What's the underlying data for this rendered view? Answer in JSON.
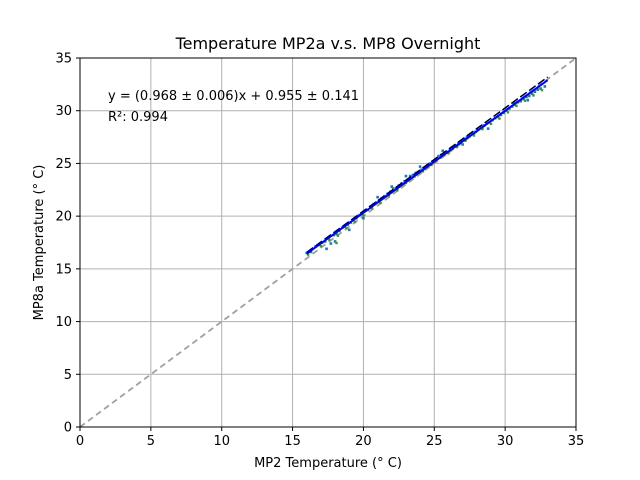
{
  "chart_data": {
    "type": "scatter",
    "title": "Temperature MP2a v.s. MP8 Overnight",
    "xlabel": "MP2 Temperature (° C)",
    "ylabel": "MP8a Temperature (° C)",
    "xlim": [
      0,
      35
    ],
    "ylim": [
      0,
      35
    ],
    "xticks": [
      0,
      5,
      10,
      15,
      20,
      25,
      30,
      35
    ],
    "yticks": [
      0,
      5,
      10,
      15,
      20,
      25,
      30,
      35
    ],
    "grid": true,
    "annotations": {
      "equation": "y = (0.968 ± 0.006)x + 0.955 ± 0.141",
      "r_squared": "R²: 0.994"
    },
    "fit": {
      "slope": 0.968,
      "intercept": 0.955,
      "x_range": [
        16.0,
        33.0
      ]
    },
    "identity_line": {
      "x_range": [
        0,
        35
      ]
    },
    "points": [
      [
        16.0,
        16.5
      ],
      [
        16.3,
        16.6
      ],
      [
        16.6,
        17.1
      ],
      [
        16.9,
        17.3
      ],
      [
        17.1,
        17.5
      ],
      [
        17.3,
        17.6
      ],
      [
        17.5,
        17.9
      ],
      [
        17.7,
        17.4
      ],
      [
        17.9,
        18.2
      ],
      [
        18.1,
        18.3
      ],
      [
        18.3,
        18.6
      ],
      [
        18.5,
        18.9
      ],
      [
        18.7,
        19.0
      ],
      [
        18.9,
        19.2
      ],
      [
        19.1,
        19.4
      ],
      [
        19.3,
        19.6
      ],
      [
        19.5,
        19.8
      ],
      [
        19.7,
        20.1
      ],
      [
        19.9,
        20.2
      ],
      [
        20.1,
        20.5
      ],
      [
        20.3,
        20.6
      ],
      [
        20.5,
        20.9
      ],
      [
        20.7,
        21.1
      ],
      [
        20.9,
        21.3
      ],
      [
        21.1,
        21.4
      ],
      [
        21.3,
        21.7
      ],
      [
        21.5,
        21.9
      ],
      [
        21.7,
        22.1
      ],
      [
        21.9,
        22.3
      ],
      [
        22.1,
        22.5
      ],
      [
        22.3,
        22.6
      ],
      [
        22.5,
        22.9
      ],
      [
        22.7,
        23.1
      ],
      [
        22.9,
        23.3
      ],
      [
        23.1,
        23.4
      ],
      [
        23.3,
        23.8
      ],
      [
        23.5,
        23.9
      ],
      [
        23.7,
        24.1
      ],
      [
        23.9,
        24.2
      ],
      [
        24.1,
        24.4
      ],
      [
        24.3,
        24.6
      ],
      [
        24.5,
        24.8
      ],
      [
        24.7,
        25.0
      ],
      [
        24.9,
        25.2
      ],
      [
        25.1,
        25.4
      ],
      [
        25.3,
        25.7
      ],
      [
        25.5,
        25.8
      ],
      [
        25.7,
        26.0
      ],
      [
        25.9,
        26.1
      ],
      [
        26.1,
        26.3
      ],
      [
        26.3,
        26.5
      ],
      [
        26.5,
        26.7
      ],
      [
        26.7,
        26.9
      ],
      [
        26.9,
        27.1
      ],
      [
        27.1,
        27.3
      ],
      [
        27.3,
        27.5
      ],
      [
        27.5,
        27.6
      ],
      [
        27.7,
        27.8
      ],
      [
        27.9,
        28.0
      ],
      [
        28.1,
        28.2
      ],
      [
        28.3,
        28.4
      ],
      [
        28.5,
        28.6
      ],
      [
        28.7,
        28.8
      ],
      [
        28.9,
        28.9
      ],
      [
        29.1,
        29.1
      ],
      [
        29.3,
        29.3
      ],
      [
        29.5,
        29.4
      ],
      [
        29.7,
        29.6
      ],
      [
        29.9,
        29.8
      ],
      [
        30.1,
        30.0
      ],
      [
        30.3,
        30.2
      ],
      [
        30.5,
        30.4
      ],
      [
        30.7,
        30.6
      ],
      [
        30.9,
        30.8
      ],
      [
        31.1,
        30.9
      ],
      [
        31.3,
        31.1
      ],
      [
        31.5,
        31.3
      ],
      [
        31.7,
        31.4
      ],
      [
        31.9,
        31.6
      ],
      [
        32.1,
        31.8
      ],
      [
        32.3,
        32.0
      ],
      [
        32.5,
        32.1
      ],
      [
        32.8,
        32.3
      ],
      [
        17.4,
        16.9
      ],
      [
        18.0,
        17.6
      ],
      [
        19.0,
        18.7
      ],
      [
        21.0,
        21.8
      ],
      [
        22.0,
        22.8
      ],
      [
        23.0,
        23.8
      ],
      [
        24.0,
        24.7
      ],
      [
        25.6,
        26.2
      ],
      [
        27.0,
        26.8
      ],
      [
        28.8,
        28.3
      ],
      [
        30.6,
        30.7
      ],
      [
        31.6,
        31.0
      ],
      [
        20.0,
        19.8
      ]
    ]
  }
}
